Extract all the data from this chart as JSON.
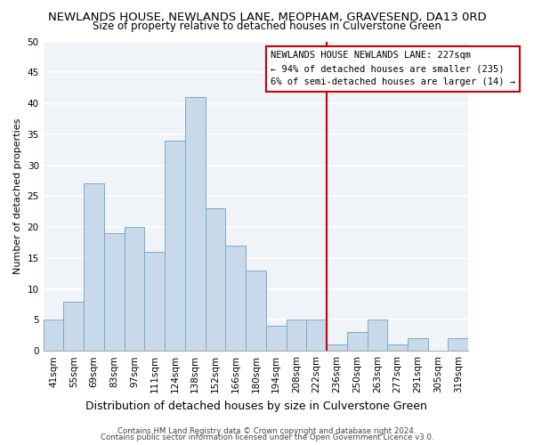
{
  "title": "NEWLANDS HOUSE, NEWLANDS LANE, MEOPHAM, GRAVESEND, DA13 0RD",
  "subtitle": "Size of property relative to detached houses in Culverstone Green",
  "xlabel": "Distribution of detached houses by size in Culverstone Green",
  "ylabel": "Number of detached properties",
  "bin_labels": [
    "41sqm",
    "55sqm",
    "69sqm",
    "83sqm",
    "97sqm",
    "111sqm",
    "124sqm",
    "138sqm",
    "152sqm",
    "166sqm",
    "180sqm",
    "194sqm",
    "208sqm",
    "222sqm",
    "236sqm",
    "250sqm",
    "263sqm",
    "277sqm",
    "291sqm",
    "305sqm",
    "319sqm"
  ],
  "bar_heights": [
    5,
    8,
    27,
    19,
    20,
    16,
    34,
    41,
    23,
    17,
    13,
    4,
    5,
    5,
    1,
    3,
    5,
    1,
    2,
    0,
    2
  ],
  "bar_color": "#c8daea",
  "bar_edgecolor": "#7aaac8",
  "vline_x": 13.5,
  "annotation_line1": "NEWLANDS HOUSE NEWLANDS LANE: 227sqm",
  "annotation_line2": "← 94% of detached houses are smaller (235)",
  "annotation_line3": "6% of semi-detached houses are larger (14) →",
  "ylim": [
    0,
    50
  ],
  "yticks": [
    0,
    5,
    10,
    15,
    20,
    25,
    30,
    35,
    40,
    45,
    50
  ],
  "footer1": "Contains HM Land Registry data © Crown copyright and database right 2024.",
  "footer2": "Contains public sector information licensed under the Open Government Licence v3.0.",
  "bg_color": "#ffffff",
  "plot_bg_color": "#f0f4f8",
  "grid_color": "#ffffff",
  "annotation_box_facecolor": "#ffffff",
  "annotation_box_edgecolor": "#cc0000",
  "vline_color": "#cc0000",
  "title_fontsize": 9.5,
  "subtitle_fontsize": 8.5,
  "ylabel_fontsize": 8,
  "xlabel_fontsize": 9,
  "tick_fontsize": 7.5,
  "annotation_fontsize": 7.5,
  "footer_fontsize": 6.2
}
